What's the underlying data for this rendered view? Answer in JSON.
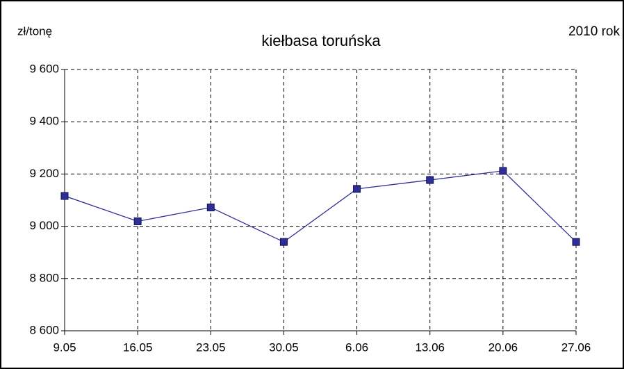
{
  "chart_data": {
    "type": "line",
    "title": "kiełbasa toruńska",
    "y_label": "zł/tonę",
    "annotation": "2010 rok",
    "categories": [
      "9.05",
      "16.05",
      "23.05",
      "30.05",
      "6.06",
      "13.06",
      "20.06",
      "27.06"
    ],
    "series": [
      {
        "name": "kiełbasa toruńska",
        "color": "#2e2e96",
        "values": [
          9116,
          9019,
          9072,
          8940,
          9143,
          9177,
          9212,
          8940
        ]
      }
    ],
    "ylim": [
      8600,
      9600
    ],
    "yticks": [
      {
        "value": 8600,
        "label": "8 600"
      },
      {
        "value": 8800,
        "label": "8 800"
      },
      {
        "value": 9000,
        "label": "9 000"
      },
      {
        "value": 9200,
        "label": "9 200"
      },
      {
        "value": 9400,
        "label": "9 400"
      },
      {
        "value": 9600,
        "label": "9 600"
      }
    ],
    "grid": true
  }
}
